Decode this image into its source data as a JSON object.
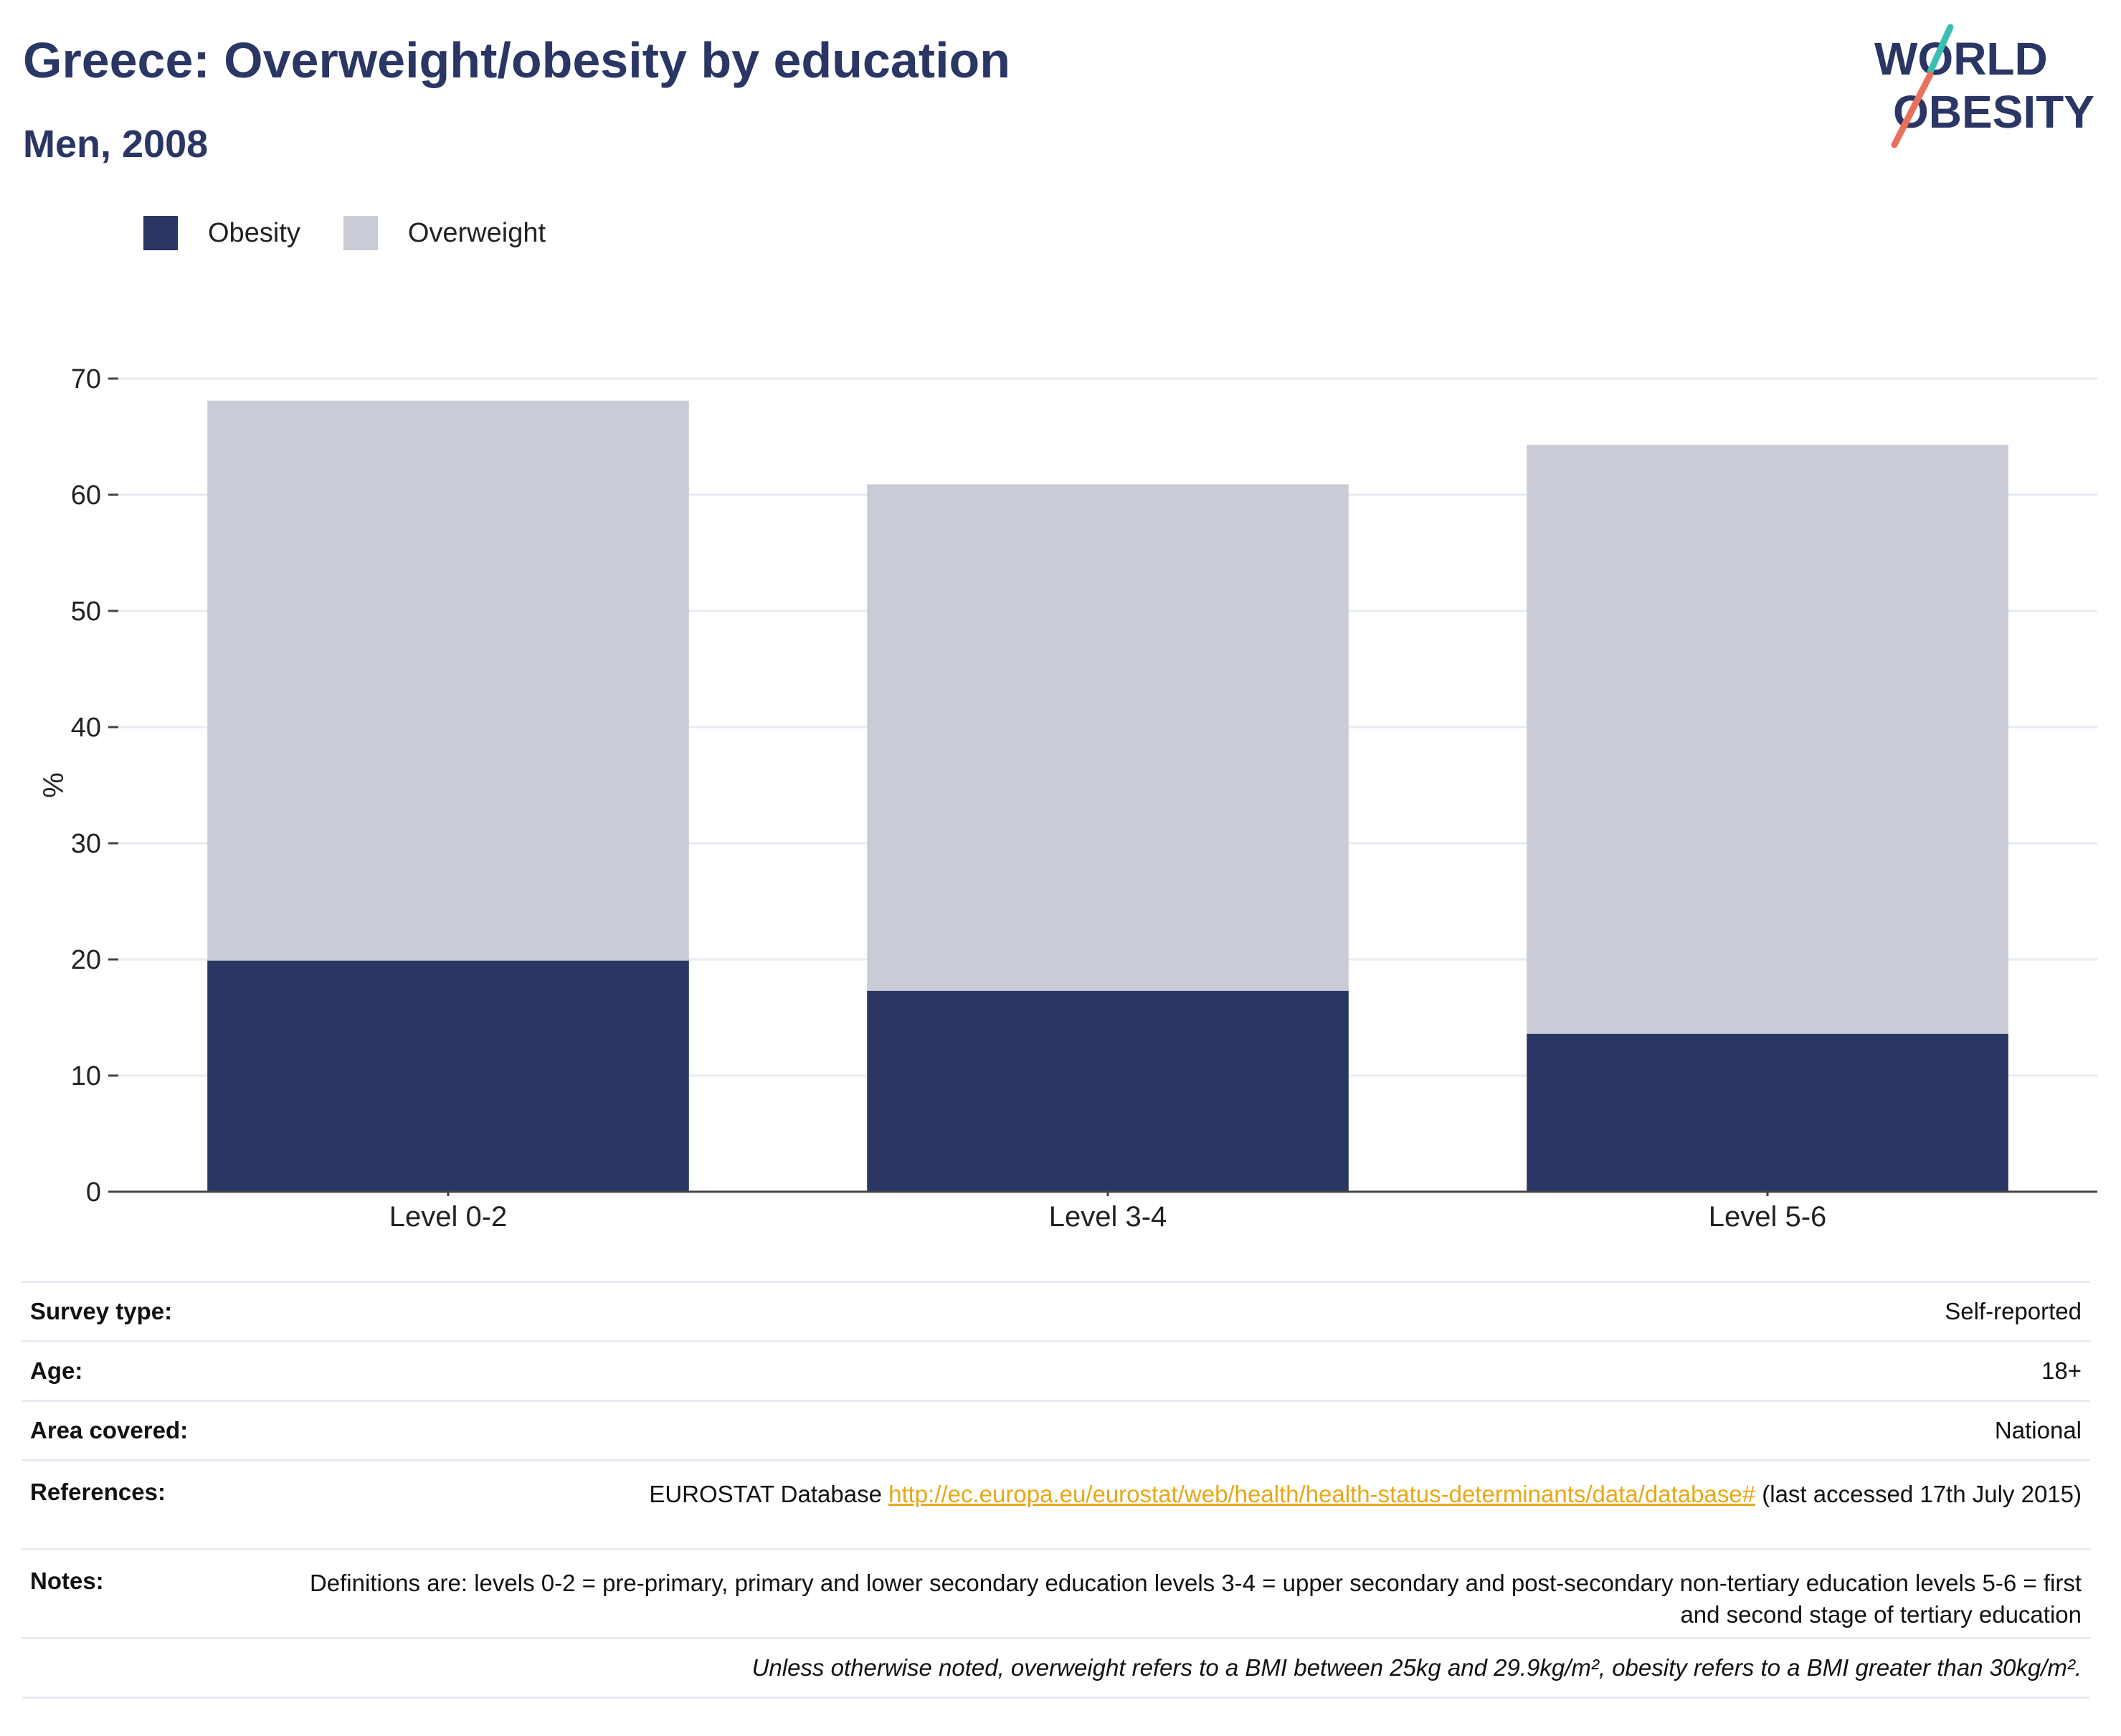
{
  "title": "Greece: Overweight/obesity by education",
  "subtitle": "Men, 2008",
  "logo": {
    "line1": "WORLD",
    "line2": "OBESITY"
  },
  "legend": [
    {
      "label": "Obesity",
      "color": "#2a3664"
    },
    {
      "label": "Overweight",
      "color": "#c9ccd7"
    }
  ],
  "chart_data": {
    "type": "bar",
    "stacked": true,
    "categories": [
      "Level 0-2",
      "Level 3-4",
      "Level 5-6"
    ],
    "series": [
      {
        "name": "Obesity",
        "color": "#2a3664",
        "values": [
          19.9,
          17.3,
          13.6
        ]
      },
      {
        "name": "Overweight",
        "color": "#c9ccd7",
        "values": [
          48.2,
          43.6,
          50.7
        ]
      }
    ],
    "ylabel": "%",
    "xlabel": "",
    "ylim": [
      0,
      70
    ],
    "yticks": [
      0,
      10,
      20,
      30,
      40,
      50,
      60,
      70
    ],
    "grid": true,
    "legend_position": "top-left"
  },
  "meta": {
    "survey_type": {
      "label": "Survey type:",
      "value": "Self-reported"
    },
    "age": {
      "label": "Age:",
      "value": "18+"
    },
    "area": {
      "label": "Area covered:",
      "value": "National"
    },
    "references": {
      "label": "References:",
      "prefix": "EUROSTAT Database ",
      "link": "http://ec.europa.eu/eurostat/web/health/health-status-determinants/data/database#",
      "suffix": " (last accessed 17th July 2015)"
    },
    "notes": {
      "label": "Notes:",
      "value": "Definitions are: levels 0-2 = pre-primary, primary and lower secondary education levels 3-4 = upper secondary and post-secondary non-tertiary education levels 5-6 = first and second stage of tertiary education"
    },
    "footnote": "Unless otherwise noted, overweight refers to a BMI between 25kg and 29.9kg/m², obesity refers to a BMI greater than 30kg/m²."
  }
}
